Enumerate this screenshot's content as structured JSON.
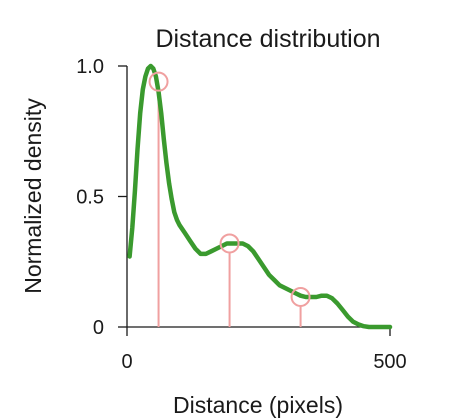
{
  "chart_data": {
    "type": "line",
    "title": "Distance distribution",
    "xlabel": "Distance (pixels)",
    "ylabel": "Normalized density",
    "xlim": [
      0,
      500
    ],
    "ylim": [
      0,
      1.0
    ],
    "x_ticks": [
      0,
      500
    ],
    "x_tick_labels": [
      "0",
      "500"
    ],
    "y_ticks": [
      0,
      0.5,
      1.0
    ],
    "y_tick_labels": [
      "0",
      "0.5",
      "1.0"
    ],
    "grid": false,
    "legend": "none",
    "series": [
      {
        "color": "#3a9a2e",
        "x": [
          5,
          10,
          15,
          20,
          25,
          30,
          35,
          40,
          45,
          50,
          55,
          60,
          65,
          70,
          75,
          80,
          85,
          90,
          95,
          100,
          110,
          120,
          130,
          140,
          150,
          160,
          170,
          180,
          190,
          200,
          210,
          220,
          230,
          240,
          250,
          260,
          270,
          280,
          290,
          300,
          310,
          320,
          330,
          340,
          350,
          360,
          370,
          380,
          390,
          400,
          410,
          420,
          430,
          440,
          450,
          460,
          470,
          480,
          500
        ],
        "y": [
          0.27,
          0.38,
          0.52,
          0.68,
          0.82,
          0.91,
          0.96,
          0.99,
          1.0,
          0.99,
          0.96,
          0.9,
          0.82,
          0.72,
          0.63,
          0.55,
          0.49,
          0.44,
          0.41,
          0.39,
          0.36,
          0.33,
          0.3,
          0.28,
          0.28,
          0.29,
          0.3,
          0.31,
          0.32,
          0.32,
          0.32,
          0.32,
          0.31,
          0.29,
          0.26,
          0.23,
          0.2,
          0.18,
          0.16,
          0.15,
          0.14,
          0.13,
          0.12,
          0.115,
          0.115,
          0.115,
          0.12,
          0.12,
          0.11,
          0.09,
          0.065,
          0.04,
          0.02,
          0.01,
          0.003,
          0.0,
          0.0,
          0.0,
          0.0
        ]
      }
    ],
    "markers": [
      {
        "x": 60,
        "y": 0.94,
        "color": "#f0a0a0"
      },
      {
        "x": 195,
        "y": 0.32,
        "color": "#f0a0a0"
      },
      {
        "x": 330,
        "y": 0.115,
        "color": "#f0a0a0"
      }
    ]
  }
}
